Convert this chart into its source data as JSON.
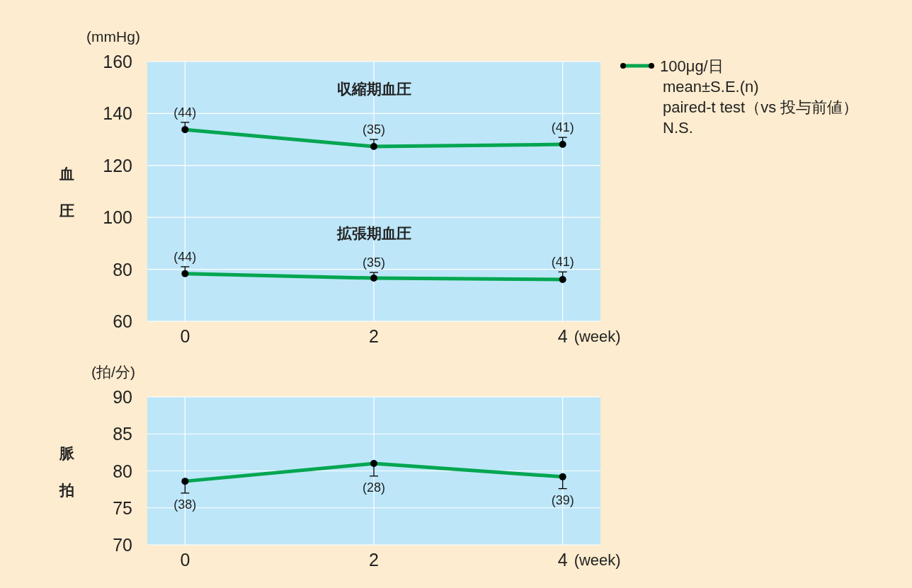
{
  "chart_data": [
    {
      "type": "line",
      "ylabel": "血圧",
      "xlabel": "(week)",
      "x": [
        0,
        2,
        4
      ],
      "xlim": [
        -0.4,
        4.4
      ],
      "xticks": [
        0,
        2,
        4
      ],
      "ylim": [
        60,
        160
      ],
      "yticks": [
        60,
        80,
        100,
        120,
        140,
        160
      ],
      "grid": true,
      "marker": "circle",
      "legend": "right",
      "series": [
        {
          "name": "100μg/日",
          "color": "#00a650",
          "values": [
            133.8,
            127.3,
            128.1
          ],
          "errors": [
            [
              133.8,
              136.6
            ],
            [
              127.3,
              130.0
            ],
            [
              128.1,
              130.8
            ]
          ]
        },
        {
          "color": "#00a650",
          "values": [
            78.3,
            76.6,
            76.1
          ],
          "errors": [
            [
              78.3,
              81.0
            ],
            [
              76.6,
              78.8
            ],
            [
              76.1,
              79.0
            ]
          ]
        }
      ],
      "annotations": [
        "(mmHg)",
        "収縮期血圧",
        "拡張期血圧",
        "mean±S.E.(n)",
        "paired-t test（vs 投与前値）",
        "N.S.",
        {
          "text": "(44)",
          "x": 0,
          "y": 133.8
        },
        {
          "text": "(35)",
          "x": 2,
          "y": 127.3
        },
        {
          "text": "(41)",
          "x": 4,
          "y": 128.1
        },
        {
          "text": "(44)",
          "x": 0,
          "y": 78.3
        },
        {
          "text": "(35)",
          "x": 2,
          "y": 76.6
        },
        {
          "text": "(41)",
          "x": 4,
          "y": 76.1
        }
      ]
    },
    {
      "type": "line",
      "ylabel": "脈拍",
      "xlabel": "(week)",
      "x": [
        0,
        2,
        4
      ],
      "xlim": [
        -0.4,
        4.4
      ],
      "xticks": [
        0,
        2,
        4
      ],
      "ylim": [
        70,
        90
      ],
      "yticks": [
        70,
        75,
        80,
        85,
        90
      ],
      "grid": true,
      "marker": "circle",
      "series": [
        {
          "color": "#00a650",
          "values": [
            78.6,
            81.0,
            79.2
          ],
          "errors": [
            [
              77.0,
              78.6
            ],
            [
              79.3,
              81.0
            ],
            [
              77.6,
              79.2
            ]
          ]
        }
      ],
      "annotations": [
        "(拍/分)",
        {
          "text": "(38)",
          "x": 0,
          "y": 78.6
        },
        {
          "text": "(28)",
          "x": 2,
          "y": 81.0
        },
        {
          "text": "(39)",
          "x": 4,
          "y": 79.2
        }
      ]
    }
  ]
}
